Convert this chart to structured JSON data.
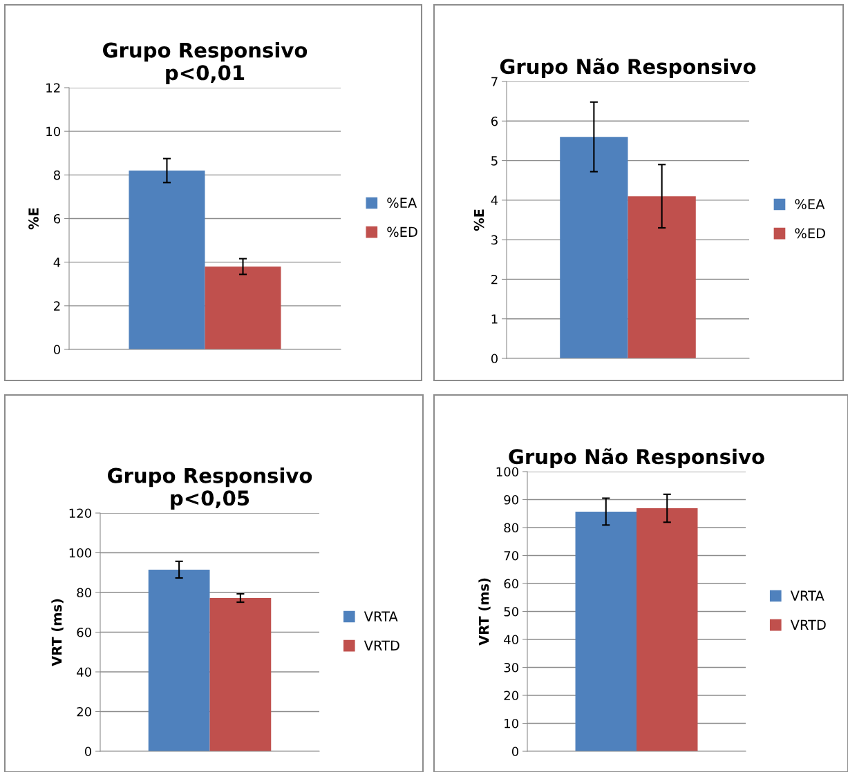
{
  "chart_data": [
    {
      "type": "bar",
      "title": "Grupo Responsivo\np<0,01",
      "ylabel": "%E",
      "categories": [
        null
      ],
      "series": [
        {
          "name": "%EA",
          "color": "#4f81bd",
          "values": [
            8.2
          ],
          "errors": [
            0.55
          ]
        },
        {
          "name": "%ED",
          "color": "#c0504d",
          "values": [
            3.8
          ],
          "errors": [
            0.36
          ]
        }
      ],
      "ylim": [
        0,
        12
      ],
      "yticks": [
        0,
        2,
        4,
        6,
        8,
        10,
        12
      ],
      "grid": "y",
      "legend": "right"
    },
    {
      "type": "bar",
      "title": "Grupo Não Responsivo",
      "ylabel": "%E",
      "categories": [
        null
      ],
      "series": [
        {
          "name": "%EA",
          "color": "#4f81bd",
          "values": [
            5.6
          ],
          "errors": [
            0.88
          ]
        },
        {
          "name": "%ED",
          "color": "#c0504d",
          "values": [
            4.1
          ],
          "errors": [
            0.8
          ]
        }
      ],
      "ylim": [
        0,
        7
      ],
      "yticks": [
        0,
        1,
        2,
        3,
        4,
        5,
        6,
        7
      ],
      "grid": "y",
      "legend": "right"
    },
    {
      "type": "bar",
      "title": "Grupo Responsivo\np<0,05",
      "ylabel": "VRT (ms)",
      "categories": [
        null
      ],
      "series": [
        {
          "name": "VRTA",
          "color": "#4f81bd",
          "values": [
            91.5
          ],
          "errors": [
            4.2
          ]
        },
        {
          "name": "VRTD",
          "color": "#c0504d",
          "values": [
            77.2
          ],
          "errors": [
            2.1
          ]
        }
      ],
      "ylim": [
        0,
        120
      ],
      "yticks": [
        0,
        20,
        40,
        60,
        80,
        100,
        120
      ],
      "grid": "y",
      "legend": "right"
    },
    {
      "type": "bar",
      "title": "Grupo Não Responsivo",
      "ylabel": "VRT (ms)",
      "categories": [
        null
      ],
      "series": [
        {
          "name": "VRTA",
          "color": "#4f81bd",
          "values": [
            85.7
          ],
          "errors": [
            4.8
          ]
        },
        {
          "name": "VRTD",
          "color": "#c0504d",
          "values": [
            86.9
          ],
          "errors": [
            5.0
          ]
        }
      ],
      "ylim": [
        0,
        100
      ],
      "yticks": [
        0,
        10,
        20,
        30,
        40,
        50,
        60,
        70,
        80,
        90,
        100
      ],
      "grid": "y",
      "legend": "right"
    }
  ]
}
